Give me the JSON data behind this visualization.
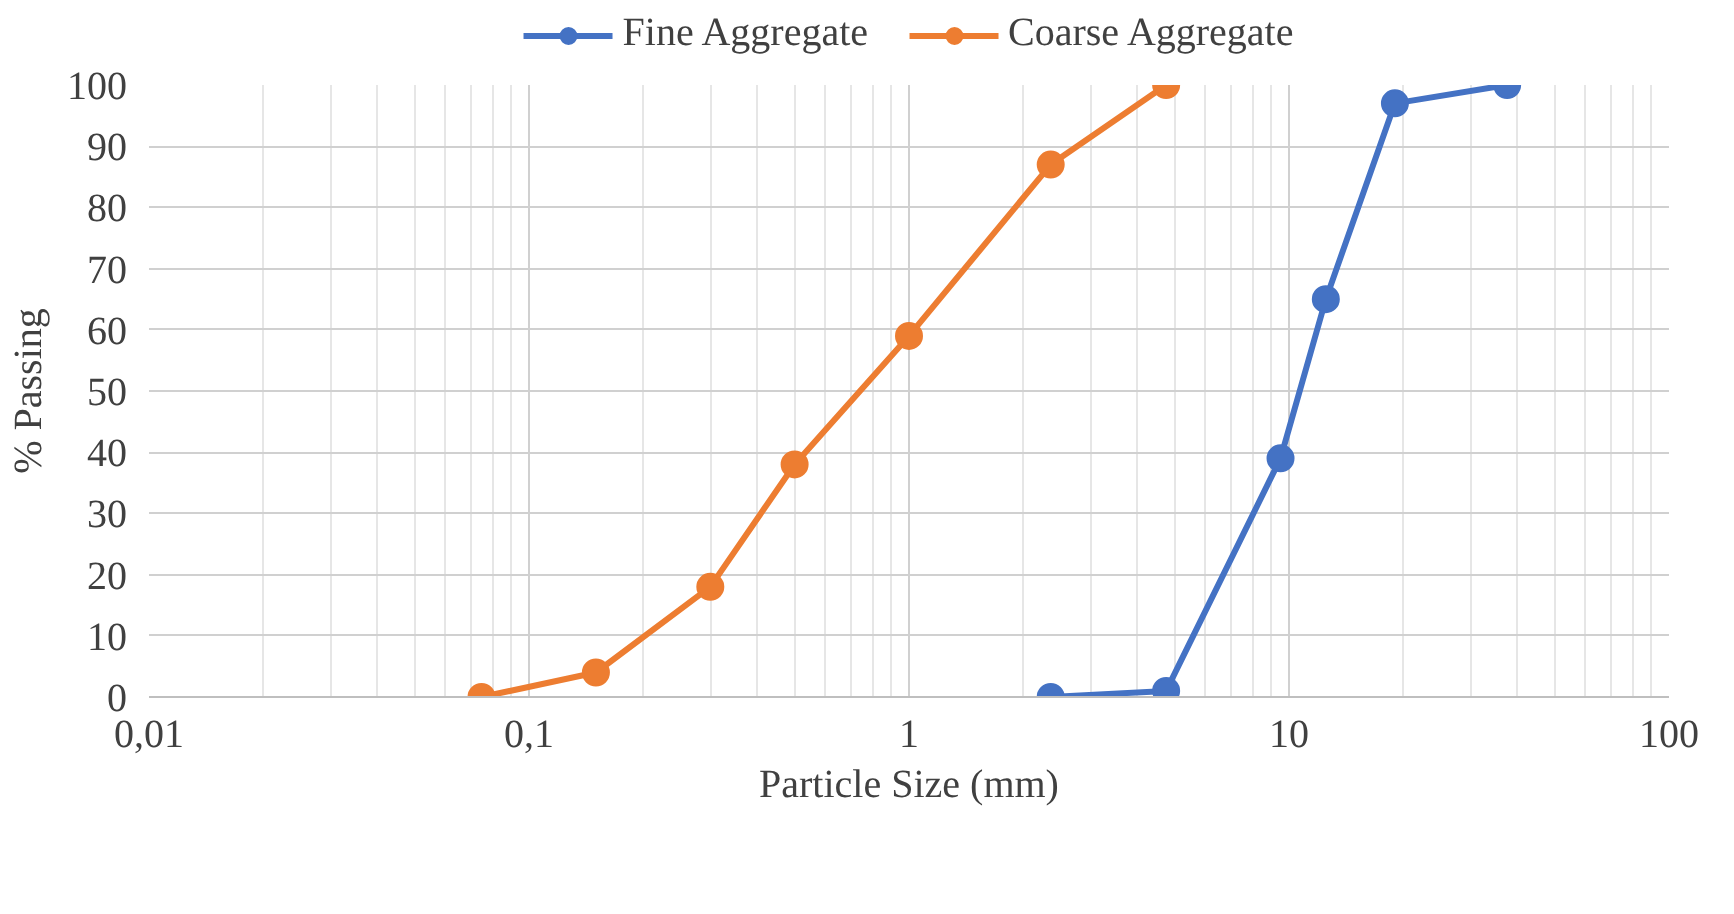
{
  "chart_data": {
    "type": "line",
    "xlabel": "Particle Size (mm)",
    "ylabel": "% Passing",
    "log": "x",
    "xlim": [
      0.01,
      100
    ],
    "xticks": [
      {
        "value": 0.01,
        "label": "0,01"
      },
      {
        "value": 0.1,
        "label": "0,1"
      },
      1,
      10,
      100
    ],
    "ylim": [
      0,
      100
    ],
    "yticks": [
      0,
      10,
      20,
      30,
      40,
      50,
      60,
      70,
      80,
      90,
      100
    ],
    "grid": true,
    "legend": "top",
    "marker": "circle",
    "line_style": "solid",
    "series": [
      {
        "name": "Fine Aggregate",
        "color": "#4472c4",
        "x": [
          2.36,
          4.75,
          9.5,
          12.5,
          19,
          37.5
        ],
        "values": [
          0,
          1,
          39,
          65,
          97,
          100
        ]
      },
      {
        "name": "Coarse Aggregate",
        "color": "#ed7d31",
        "x": [
          0.075,
          0.15,
          0.3,
          0.5,
          1,
          2.36,
          4.75
        ],
        "values": [
          0,
          4,
          18,
          38,
          59,
          87,
          100
        ]
      }
    ]
  }
}
